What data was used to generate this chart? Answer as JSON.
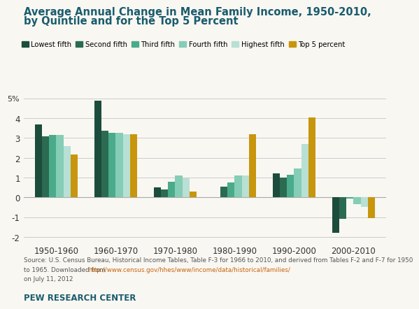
{
  "title_line1": "Average Annual Change in Mean Family Income, 1950-2010,",
  "title_line2": "by Quintile and for the Top 5 Percent",
  "categories": [
    "1950-1960",
    "1960-1970",
    "1970-1980",
    "1980-1990",
    "1990-2000",
    "2000-2010"
  ],
  "series": {
    "Lowest fifth": [
      3.7,
      4.9,
      0.5,
      0.0,
      1.2,
      -1.8
    ],
    "Second fifth": [
      3.1,
      3.35,
      0.4,
      0.55,
      1.0,
      -1.1
    ],
    "Third fifth": [
      3.15,
      3.25,
      0.8,
      0.75,
      1.15,
      -0.05
    ],
    "Fourth fifth": [
      3.15,
      3.25,
      1.1,
      1.1,
      1.45,
      -0.35
    ],
    "Highest fifth": [
      2.6,
      3.2,
      0.95,
      1.1,
      2.7,
      -0.5
    ],
    "Top 5 percent": [
      2.15,
      3.2,
      0.3,
      3.2,
      4.05,
      -1.05
    ]
  },
  "colors": {
    "Lowest fifth": "#1c4c3c",
    "Second fifth": "#2b6b52",
    "Third fifth": "#4aab8b",
    "Fourth fifth": "#85cdb5",
    "Highest fifth": "#b8e0d4",
    "Top 5 percent": "#c8960c"
  },
  "ylim": [
    -2.3,
    5.3
  ],
  "yticks": [
    -2,
    -1,
    0,
    1,
    2,
    3,
    4
  ],
  "background_color": "#f9f7f2",
  "title_color": "#1a5c6e",
  "grid_color": "#cccccc",
  "source_color": "#555555",
  "footer_color": "#1a5c6e",
  "source_text1": "Source: U.S. Census Bureau, Historical Income Tables, Table F-3 for 1966 to 2010, and derived from Tables F-2 and F-7 for 1950",
  "source_text2": "to 1965. Downloaded from ",
  "source_link": "http://www.census.gov/hhes/www/income/data/historical/families/",
  "source_text3": " on July 11, 2012",
  "footer": "PEW RESEARCH CENTER"
}
